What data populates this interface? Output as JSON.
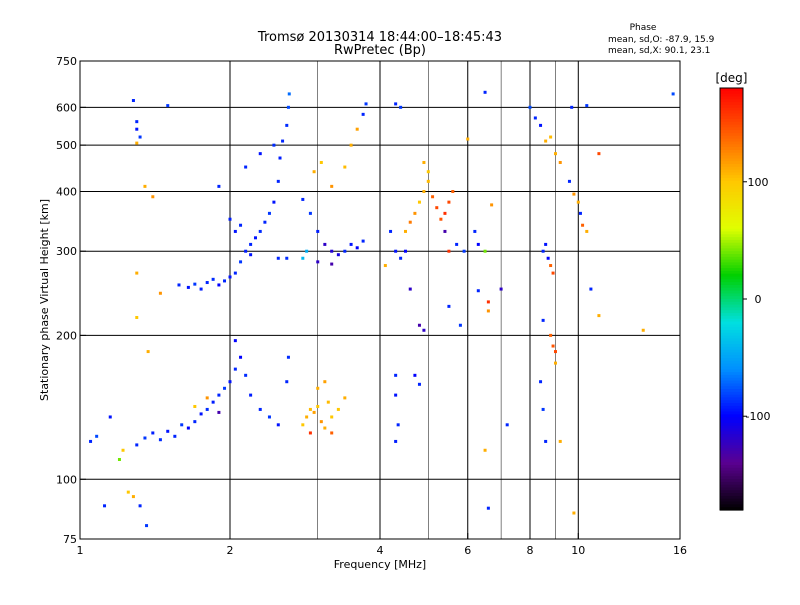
{
  "chart_data": {
    "type": "scatter",
    "title": "Tromsø 20130314 18:44:00–18:45:43",
    "subtitle": "RwPretec (Bp)",
    "xlabel": "Frequency [MHz]",
    "ylabel": "Stationary phase Virtual Height [km]",
    "x_scale": "log",
    "y_scale": "log",
    "xlim": [
      1,
      16
    ],
    "ylim": [
      75,
      750
    ],
    "x_ticks": [
      1,
      2,
      4,
      6,
      8,
      10,
      16
    ],
    "x_grid": [
      1,
      2,
      4,
      6,
      8,
      10,
      16
    ],
    "x_minor_grid": [
      3,
      5,
      7,
      9
    ],
    "y_ticks": [
      75,
      100,
      200,
      300,
      400,
      500,
      600,
      750
    ],
    "y_grid": [
      100,
      200,
      300,
      400,
      500,
      600
    ],
    "grid": true,
    "phase_info": {
      "title": "Phase",
      "o_line": "mean, sd,O: -87.9, 15.9",
      "x_line": "mean, sd,X:  90.1, 23.1"
    },
    "colorbar": {
      "unit": "[deg]",
      "range": [
        -180,
        180
      ],
      "ticks": [
        100,
        0,
        -100
      ],
      "colors": [
        "#000000",
        "#5a0090",
        "#0000ff",
        "#0090ff",
        "#00e0e0",
        "#00d000",
        "#e0ff00",
        "#ffc800",
        "#ff6000",
        "#ff0000"
      ]
    },
    "series": [
      {
        "values": [
          {
            "x": 1.05,
            "y": 120,
            "p": -90
          },
          {
            "x": 1.08,
            "y": 123,
            "p": -80
          },
          {
            "x": 1.15,
            "y": 135,
            "p": -95
          },
          {
            "x": 1.12,
            "y": 88,
            "p": -90
          },
          {
            "x": 1.2,
            "y": 110,
            "p": 40
          },
          {
            "x": 1.22,
            "y": 115,
            "p": 100
          },
          {
            "x": 1.3,
            "y": 118,
            "p": -90
          },
          {
            "x": 1.35,
            "y": 122,
            "p": -85
          },
          {
            "x": 1.4,
            "y": 125,
            "p": -92
          },
          {
            "x": 1.45,
            "y": 121,
            "p": -88
          },
          {
            "x": 1.5,
            "y": 126,
            "p": -95
          },
          {
            "x": 1.55,
            "y": 123,
            "p": -90
          },
          {
            "x": 1.6,
            "y": 130,
            "p": -85
          },
          {
            "x": 1.65,
            "y": 128,
            "p": -100
          },
          {
            "x": 1.7,
            "y": 132,
            "p": -90
          },
          {
            "x": 1.75,
            "y": 137,
            "p": -95
          },
          {
            "x": 1.8,
            "y": 140,
            "p": -88
          },
          {
            "x": 1.85,
            "y": 145,
            "p": -92
          },
          {
            "x": 1.9,
            "y": 150,
            "p": -90
          },
          {
            "x": 1.95,
            "y": 155,
            "p": -85
          },
          {
            "x": 2.0,
            "y": 160,
            "p": -95
          },
          {
            "x": 2.05,
            "y": 170,
            "p": -90
          },
          {
            "x": 2.1,
            "y": 180,
            "p": -100
          },
          {
            "x": 2.15,
            "y": 165,
            "p": -88
          },
          {
            "x": 2.2,
            "y": 150,
            "p": -92
          },
          {
            "x": 2.3,
            "y": 140,
            "p": -90
          },
          {
            "x": 2.4,
            "y": 135,
            "p": -85
          },
          {
            "x": 2.5,
            "y": 130,
            "p": -95
          },
          {
            "x": 2.6,
            "y": 160,
            "p": -90
          },
          {
            "x": 2.62,
            "y": 180,
            "p": -88
          },
          {
            "x": 1.7,
            "y": 142,
            "p": 100
          },
          {
            "x": 1.8,
            "y": 148,
            "p": 120
          },
          {
            "x": 1.9,
            "y": 138,
            "p": -130
          },
          {
            "x": 2.05,
            "y": 195,
            "p": -100
          },
          {
            "x": 1.25,
            "y": 94,
            "p": 100
          },
          {
            "x": 1.28,
            "y": 92,
            "p": 110
          },
          {
            "x": 1.3,
            "y": 270,
            "p": 110
          },
          {
            "x": 1.3,
            "y": 218,
            "p": 100
          },
          {
            "x": 1.37,
            "y": 185,
            "p": 110
          },
          {
            "x": 1.45,
            "y": 245,
            "p": 120
          },
          {
            "x": 1.58,
            "y": 255,
            "p": -90
          },
          {
            "x": 1.65,
            "y": 252,
            "p": -95
          },
          {
            "x": 1.7,
            "y": 256,
            "p": -85
          },
          {
            "x": 1.75,
            "y": 250,
            "p": -92
          },
          {
            "x": 1.8,
            "y": 258,
            "p": -90
          },
          {
            "x": 1.85,
            "y": 262,
            "p": -88
          },
          {
            "x": 1.9,
            "y": 255,
            "p": -100
          },
          {
            "x": 1.95,
            "y": 260,
            "p": -90
          },
          {
            "x": 2.0,
            "y": 265,
            "p": -95
          },
          {
            "x": 2.05,
            "y": 270,
            "p": -90
          },
          {
            "x": 2.1,
            "y": 285,
            "p": -85
          },
          {
            "x": 2.15,
            "y": 300,
            "p": -92
          },
          {
            "x": 2.2,
            "y": 310,
            "p": -90
          },
          {
            "x": 2.25,
            "y": 320,
            "p": -95
          },
          {
            "x": 2.3,
            "y": 330,
            "p": -88
          },
          {
            "x": 2.35,
            "y": 345,
            "p": -90
          },
          {
            "x": 2.4,
            "y": 360,
            "p": -85
          },
          {
            "x": 2.45,
            "y": 380,
            "p": -95
          },
          {
            "x": 2.5,
            "y": 420,
            "p": -90
          },
          {
            "x": 2.52,
            "y": 470,
            "p": -92
          },
          {
            "x": 2.55,
            "y": 510,
            "p": -90
          },
          {
            "x": 2.6,
            "y": 550,
            "p": -88
          },
          {
            "x": 2.62,
            "y": 600,
            "p": -80
          },
          {
            "x": 2.63,
            "y": 640,
            "p": -70
          },
          {
            "x": 2.05,
            "y": 330,
            "p": -95
          },
          {
            "x": 2.1,
            "y": 340,
            "p": -90
          },
          {
            "x": 2.0,
            "y": 350,
            "p": -92
          },
          {
            "x": 2.15,
            "y": 450,
            "p": -90
          },
          {
            "x": 2.3,
            "y": 480,
            "p": -95
          },
          {
            "x": 2.45,
            "y": 500,
            "p": -88
          },
          {
            "x": 1.9,
            "y": 410,
            "p": -90
          },
          {
            "x": 2.2,
            "y": 295,
            "p": -95
          },
          {
            "x": 2.5,
            "y": 290,
            "p": -90
          },
          {
            "x": 2.6,
            "y": 290,
            "p": -88
          },
          {
            "x": 2.8,
            "y": 290,
            "p": -40
          },
          {
            "x": 2.85,
            "y": 300,
            "p": -45
          },
          {
            "x": 2.8,
            "y": 385,
            "p": -90
          },
          {
            "x": 2.9,
            "y": 360,
            "p": -85
          },
          {
            "x": 3.0,
            "y": 330,
            "p": -92
          },
          {
            "x": 3.1,
            "y": 310,
            "p": -120
          },
          {
            "x": 3.2,
            "y": 300,
            "p": -115
          },
          {
            "x": 3.3,
            "y": 295,
            "p": -110
          },
          {
            "x": 3.4,
            "y": 300,
            "p": -90
          },
          {
            "x": 3.5,
            "y": 310,
            "p": -95
          },
          {
            "x": 3.6,
            "y": 305,
            "p": -100
          },
          {
            "x": 3.7,
            "y": 315,
            "p": -90
          },
          {
            "x": 3.0,
            "y": 285,
            "p": -120
          },
          {
            "x": 3.2,
            "y": 282,
            "p": -130
          },
          {
            "x": 2.95,
            "y": 440,
            "p": 110
          },
          {
            "x": 3.05,
            "y": 460,
            "p": 100
          },
          {
            "x": 3.2,
            "y": 410,
            "p": 120
          },
          {
            "x": 3.4,
            "y": 450,
            "p": 105
          },
          {
            "x": 3.5,
            "y": 500,
            "p": 110
          },
          {
            "x": 3.6,
            "y": 540,
            "p": 115
          },
          {
            "x": 3.7,
            "y": 580,
            "p": -90
          },
          {
            "x": 3.75,
            "y": 610,
            "p": -85
          },
          {
            "x": 2.8,
            "y": 130,
            "p": 100
          },
          {
            "x": 2.85,
            "y": 135,
            "p": 110
          },
          {
            "x": 2.9,
            "y": 140,
            "p": 105
          },
          {
            "x": 2.95,
            "y": 138,
            "p": 115
          },
          {
            "x": 3.0,
            "y": 142,
            "p": 100
          },
          {
            "x": 3.05,
            "y": 132,
            "p": 120
          },
          {
            "x": 3.1,
            "y": 128,
            "p": 110
          },
          {
            "x": 3.15,
            "y": 145,
            "p": 105
          },
          {
            "x": 3.2,
            "y": 135,
            "p": 100
          },
          {
            "x": 3.0,
            "y": 155,
            "p": 110
          },
          {
            "x": 3.1,
            "y": 160,
            "p": 115
          },
          {
            "x": 3.2,
            "y": 125,
            "p": 140
          },
          {
            "x": 3.3,
            "y": 140,
            "p": 100
          },
          {
            "x": 3.4,
            "y": 148,
            "p": 110
          },
          {
            "x": 2.9,
            "y": 125,
            "p": 160
          },
          {
            "x": 4.3,
            "y": 610,
            "p": -90
          },
          {
            "x": 4.4,
            "y": 600,
            "p": -85
          },
          {
            "x": 4.5,
            "y": 330,
            "p": 110
          },
          {
            "x": 4.6,
            "y": 345,
            "p": 130
          },
          {
            "x": 4.7,
            "y": 360,
            "p": 120
          },
          {
            "x": 4.8,
            "y": 380,
            "p": 100
          },
          {
            "x": 4.9,
            "y": 400,
            "p": 110
          },
          {
            "x": 5.0,
            "y": 420,
            "p": 105
          },
          {
            "x": 5.1,
            "y": 390,
            "p": 140
          },
          {
            "x": 5.2,
            "y": 370,
            "p": 150
          },
          {
            "x": 5.3,
            "y": 350,
            "p": 145
          },
          {
            "x": 5.4,
            "y": 360,
            "p": 160
          },
          {
            "x": 5.5,
            "y": 380,
            "p": 150
          },
          {
            "x": 5.6,
            "y": 400,
            "p": 140
          },
          {
            "x": 5.0,
            "y": 440,
            "p": 100
          },
          {
            "x": 4.9,
            "y": 460,
            "p": 110
          },
          {
            "x": 4.2,
            "y": 330,
            "p": -90
          },
          {
            "x": 4.3,
            "y": 300,
            "p": -95
          },
          {
            "x": 4.1,
            "y": 280,
            "p": 110
          },
          {
            "x": 4.4,
            "y": 290,
            "p": -90
          },
          {
            "x": 4.5,
            "y": 300,
            "p": -100
          },
          {
            "x": 4.6,
            "y": 250,
            "p": -120
          },
          {
            "x": 4.8,
            "y": 210,
            "p": -130
          },
          {
            "x": 4.9,
            "y": 205,
            "p": -120
          },
          {
            "x": 5.5,
            "y": 230,
            "p": -90
          },
          {
            "x": 5.8,
            "y": 210,
            "p": -85
          },
          {
            "x": 4.3,
            "y": 165,
            "p": -90
          },
          {
            "x": 4.3,
            "y": 150,
            "p": -95
          },
          {
            "x": 4.35,
            "y": 130,
            "p": -90
          },
          {
            "x": 4.3,
            "y": 120,
            "p": -92
          },
          {
            "x": 4.7,
            "y": 165,
            "p": -100
          },
          {
            "x": 4.8,
            "y": 158,
            "p": -90
          },
          {
            "x": 5.4,
            "y": 330,
            "p": -130
          },
          {
            "x": 5.5,
            "y": 300,
            "p": 160
          },
          {
            "x": 5.7,
            "y": 310,
            "p": -90
          },
          {
            "x": 5.9,
            "y": 300,
            "p": -85
          },
          {
            "x": 6.0,
            "y": 515,
            "p": 110
          },
          {
            "x": 6.2,
            "y": 330,
            "p": -90
          },
          {
            "x": 6.3,
            "y": 310,
            "p": -100
          },
          {
            "x": 6.5,
            "y": 300,
            "p": 40
          },
          {
            "x": 6.5,
            "y": 645,
            "p": -90
          },
          {
            "x": 6.6,
            "y": 235,
            "p": 160
          },
          {
            "x": 6.6,
            "y": 225,
            "p": 120
          },
          {
            "x": 6.7,
            "y": 375,
            "p": 120
          },
          {
            "x": 6.3,
            "y": 248,
            "p": -90
          },
          {
            "x": 6.5,
            "y": 115,
            "p": 110
          },
          {
            "x": 6.6,
            "y": 87,
            "p": -90
          },
          {
            "x": 7.0,
            "y": 250,
            "p": -120
          },
          {
            "x": 7.2,
            "y": 130,
            "p": -90
          },
          {
            "x": 8.0,
            "y": 600,
            "p": -80
          },
          {
            "x": 8.2,
            "y": 570,
            "p": -90
          },
          {
            "x": 8.4,
            "y": 550,
            "p": -95
          },
          {
            "x": 8.6,
            "y": 510,
            "p": 110
          },
          {
            "x": 8.8,
            "y": 520,
            "p": 105
          },
          {
            "x": 9.0,
            "y": 480,
            "p": 110
          },
          {
            "x": 9.2,
            "y": 460,
            "p": 120
          },
          {
            "x": 8.5,
            "y": 300,
            "p": -90
          },
          {
            "x": 8.6,
            "y": 310,
            "p": -95
          },
          {
            "x": 8.7,
            "y": 290,
            "p": -100
          },
          {
            "x": 8.8,
            "y": 280,
            "p": 140
          },
          {
            "x": 8.9,
            "y": 270,
            "p": 150
          },
          {
            "x": 8.5,
            "y": 215,
            "p": -90
          },
          {
            "x": 8.8,
            "y": 200,
            "p": 140
          },
          {
            "x": 8.9,
            "y": 190,
            "p": 145
          },
          {
            "x": 9.0,
            "y": 185,
            "p": 150
          },
          {
            "x": 9.0,
            "y": 175,
            "p": 110
          },
          {
            "x": 8.4,
            "y": 160,
            "p": -90
          },
          {
            "x": 8.5,
            "y": 140,
            "p": -85
          },
          {
            "x": 8.6,
            "y": 120,
            "p": -90
          },
          {
            "x": 9.2,
            "y": 120,
            "p": 110
          },
          {
            "x": 9.6,
            "y": 420,
            "p": -90
          },
          {
            "x": 9.8,
            "y": 395,
            "p": 120
          },
          {
            "x": 10.0,
            "y": 380,
            "p": 110
          },
          {
            "x": 10.1,
            "y": 360,
            "p": -90
          },
          {
            "x": 10.2,
            "y": 340,
            "p": 140
          },
          {
            "x": 10.4,
            "y": 330,
            "p": 110
          },
          {
            "x": 9.7,
            "y": 600,
            "p": -90
          },
          {
            "x": 10.4,
            "y": 605,
            "p": -85
          },
          {
            "x": 11.0,
            "y": 480,
            "p": 150
          },
          {
            "x": 10.6,
            "y": 250,
            "p": -90
          },
          {
            "x": 11.0,
            "y": 220,
            "p": 110
          },
          {
            "x": 9.8,
            "y": 85,
            "p": 110
          },
          {
            "x": 13.5,
            "y": 205,
            "p": 110
          },
          {
            "x": 15.5,
            "y": 640,
            "p": -80
          },
          {
            "x": 1.3,
            "y": 560,
            "p": -90
          },
          {
            "x": 1.3,
            "y": 540,
            "p": -95
          },
          {
            "x": 1.32,
            "y": 520,
            "p": -85
          },
          {
            "x": 1.3,
            "y": 505,
            "p": 110
          },
          {
            "x": 1.28,
            "y": 620,
            "p": -90
          },
          {
            "x": 1.5,
            "y": 605,
            "p": -85
          },
          {
            "x": 1.35,
            "y": 410,
            "p": 110
          },
          {
            "x": 1.4,
            "y": 390,
            "p": 120
          },
          {
            "x": 1.32,
            "y": 88,
            "p": -90
          },
          {
            "x": 1.36,
            "y": 80,
            "p": -85
          }
        ]
      }
    ]
  }
}
